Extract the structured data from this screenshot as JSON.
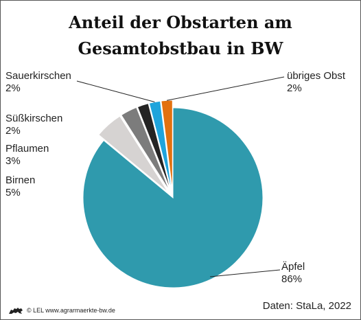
{
  "chart_data": {
    "type": "pie",
    "title_lines": [
      "Anteil der Obstarten am",
      "Gesamtobstbau in BW"
    ],
    "slices": [
      {
        "label": "Äpfel",
        "value": 86,
        "value_text": "86%",
        "color": "#2f9aad",
        "exploded": false
      },
      {
        "label": "Birnen",
        "value": 5,
        "value_text": "5%",
        "color": "#d6d3d2",
        "exploded": true
      },
      {
        "label": "Pflaumen",
        "value": 3,
        "value_text": "3%",
        "color": "#7c7c7c",
        "exploded": true
      },
      {
        "label": "Süßkirschen",
        "value": 2,
        "value_text": "2%",
        "color": "#242424",
        "exploded": true
      },
      {
        "label": "Sauerkirschen",
        "value": 2,
        "value_text": "2%",
        "color": "#1fa4dc",
        "exploded": true
      },
      {
        "label": "übriges Obst",
        "value": 2,
        "value_text": "2%",
        "color": "#e2710f",
        "exploded": true
      }
    ]
  },
  "footer": {
    "copyright": "© LEL www.agrarmaerkte-bw.de",
    "source": "Daten: StaLa, 2022"
  }
}
